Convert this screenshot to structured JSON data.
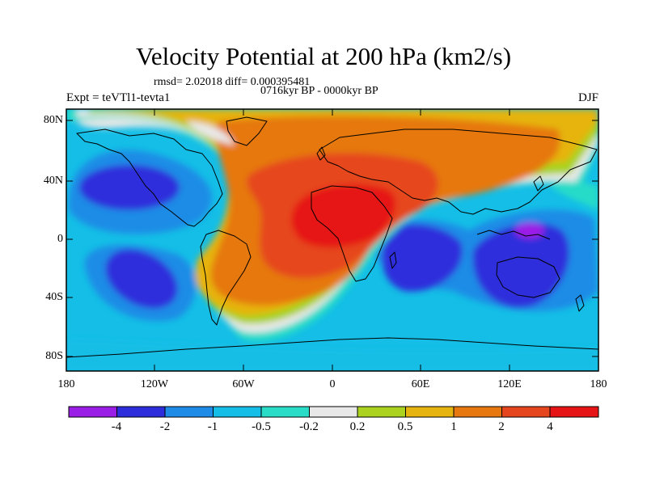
{
  "title": "Velocity Potential at 200 hPa (km2/s)",
  "stats_line": "rmsd= 2.02018  diff= 0.000395481",
  "period_line": "0716kyr BP - 0000kyr BP",
  "left_string": "Expt = teVTl1-tevta1",
  "right_string": "DJF",
  "axes": {
    "lat_ticks": [
      "80N",
      "40N",
      "0",
      "40S",
      "80S"
    ],
    "lon_ticks": [
      "180",
      "120W",
      "60W",
      "0",
      "60E",
      "120E",
      "180"
    ]
  },
  "colorbar": {
    "labels": [
      "-4",
      "-2",
      "-1",
      "-0.5",
      "-0.2",
      "0.2",
      "0.5",
      "1",
      "2",
      "4"
    ],
    "colors": [
      "#9b1ee6",
      "#2d2ddc",
      "#1e8ce6",
      "#14bee6",
      "#28dcc8",
      "#e8e8e8",
      "#aad21e",
      "#e6b40f",
      "#e6780f",
      "#e6461e",
      "#e61414"
    ]
  },
  "map_fields": {
    "background_color": "#14bee6",
    "region_colors": {
      "very_low": "#2d2ddc",
      "low": "#1e8ce6",
      "mid_low": "#14bee6",
      "near_neg": "#28dcc8",
      "near_zero": "#e8e8e8",
      "near_pos": "#aad21e",
      "mid_pos": "#e6b40f",
      "high": "#e6780f",
      "higher": "#e6461e",
      "max": "#e61414",
      "min": "#9b1ee6"
    }
  }
}
